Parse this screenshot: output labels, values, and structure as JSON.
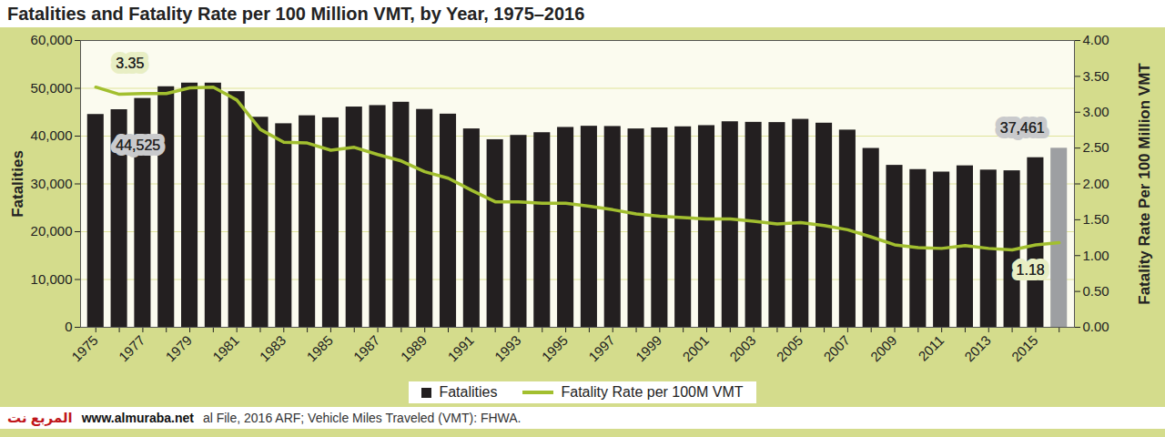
{
  "chart_data": {
    "type": "bar",
    "title": "Fatalities and Fatality Rate per 100 Million VMT, by Year, 1975–2016",
    "categories": [
      "1975",
      null,
      "1977",
      null,
      "1979",
      null,
      "1981",
      null,
      "1983",
      null,
      "1985",
      null,
      "1987",
      null,
      "1989",
      null,
      "1991",
      null,
      "1993",
      null,
      "1995",
      null,
      "1997",
      null,
      "1999",
      null,
      "2001",
      null,
      "2003",
      null,
      "2005",
      null,
      "2007",
      null,
      "2009",
      null,
      "2011",
      null,
      "2013",
      null,
      "2015",
      null
    ],
    "series": [
      {
        "name": "Fatalities",
        "type": "bar",
        "color": "#231f20",
        "colors": [
          "#231f20",
          "#231f20",
          "#231f20",
          "#231f20",
          "#231f20",
          "#231f20",
          "#231f20",
          "#231f20",
          "#231f20",
          "#231f20",
          "#231f20",
          "#231f20",
          "#231f20",
          "#231f20",
          "#231f20",
          "#231f20",
          "#231f20",
          "#231f20",
          "#231f20",
          "#231f20",
          "#231f20",
          "#231f20",
          "#231f20",
          "#231f20",
          "#231f20",
          "#231f20",
          "#231f20",
          "#231f20",
          "#231f20",
          "#231f20",
          "#231f20",
          "#231f20",
          "#231f20",
          "#231f20",
          "#231f20",
          "#231f20",
          "#231f20",
          "#231f20",
          "#231f20",
          "#231f20",
          "#231f20",
          "#9d9fa2"
        ],
        "values": [
          44525,
          45523,
          47878,
          50331,
          51093,
          51091,
          49301,
          43945,
          42589,
          44257,
          43825,
          46087,
          46390,
          47087,
          45582,
          44599,
          41508,
          39250,
          40150,
          40716,
          41817,
          42065,
          42013,
          41501,
          41717,
          41945,
          42196,
          43005,
          42884,
          42836,
          43510,
          42708,
          41259,
          37423,
          33883,
          32999,
          32479,
          33782,
          32893,
          32744,
          35485,
          37461
        ]
      },
      {
        "name": "Fatality Rate per 100M VMT",
        "type": "line",
        "axis": "y2",
        "color": "#a2bf2f",
        "values": [
          3.35,
          3.25,
          3.26,
          3.26,
          3.34,
          3.35,
          3.17,
          2.76,
          2.58,
          2.57,
          2.47,
          2.51,
          2.41,
          2.32,
          2.17,
          2.08,
          1.91,
          1.75,
          1.75,
          1.73,
          1.73,
          1.69,
          1.64,
          1.58,
          1.55,
          1.53,
          1.51,
          1.51,
          1.48,
          1.44,
          1.46,
          1.42,
          1.36,
          1.26,
          1.15,
          1.11,
          1.1,
          1.14,
          1.1,
          1.08,
          1.15,
          1.18
        ]
      }
    ],
    "ylabel": "Fatalities",
    "y2label": "Fatality Rate Per 100 Million VMT",
    "ylim": [
      0,
      60000
    ],
    "yticks": [
      0,
      {
        "value": 10000,
        "label": "10,000"
      },
      {
        "value": 20000,
        "label": "20,000"
      },
      {
        "value": 30000,
        "label": "30,000"
      },
      {
        "value": 40000,
        "label": "40,000"
      },
      {
        "value": 50000,
        "label": "50,000"
      },
      {
        "value": 60000,
        "label": "60,000"
      }
    ],
    "y2lim": [
      0,
      4
    ],
    "y2ticks": [
      {
        "value": 0,
        "label": "0.00"
      },
      {
        "value": 0.5,
        "label": "0.50"
      },
      {
        "value": 1,
        "label": "1.00"
      },
      {
        "value": 1.5,
        "label": "1.50"
      },
      {
        "value": 2,
        "label": "2.00"
      },
      {
        "value": 2.5,
        "label": "2.50"
      },
      {
        "value": 3,
        "label": "3.00"
      },
      {
        "value": 3.5,
        "label": "3.50"
      },
      {
        "value": 4,
        "label": "4.00"
      }
    ],
    "grid": true,
    "legend": "bottom",
    "annotations": [
      {
        "series": "Fatality Rate per 100M VMT",
        "index": 0,
        "label": "3.35"
      },
      {
        "series": "Fatalities",
        "index": 0,
        "label": "44,525"
      },
      {
        "series": "Fatalities",
        "index": 41,
        "label": "37,461"
      },
      {
        "series": "Fatality Rate per 100M VMT",
        "index": 41,
        "label": "1.18"
      }
    ],
    "source": "al File, 2016 ARF; Vehicle Miles Traveled (VMT): FHWA.",
    "watermark": [
      "المربع نت",
      "www.almuraba.net"
    ]
  }
}
